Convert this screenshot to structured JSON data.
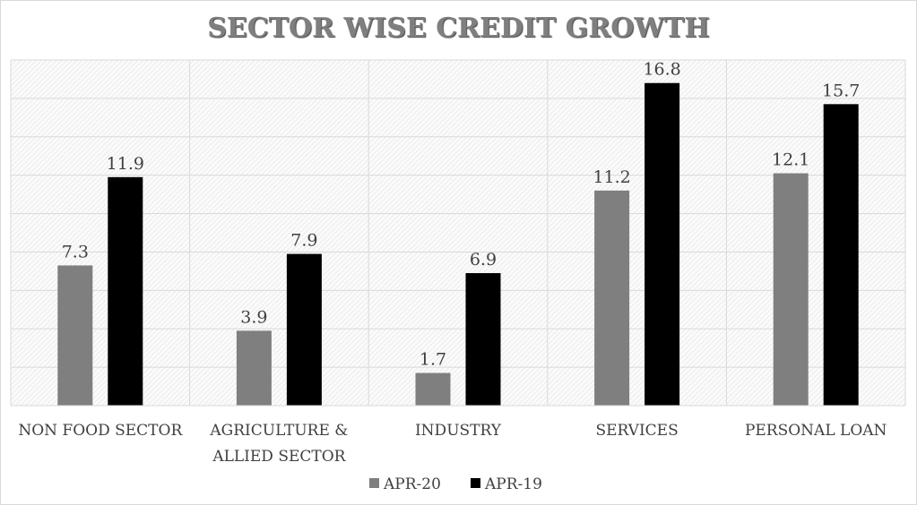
{
  "chart_data": {
    "type": "bar",
    "title": "SECTOR WISE CREDIT GROWTH",
    "categories": [
      [
        "NON FOOD SECTOR"
      ],
      [
        "AGRICULTURE &",
        "ALLIED SECTOR"
      ],
      [
        "INDUSTRY"
      ],
      [
        "SERVICES"
      ],
      [
        "PERSONAL LOAN"
      ]
    ],
    "series": [
      {
        "name": "APR-20",
        "color": "#7f7f7f",
        "values": [
          7.3,
          3.9,
          1.7,
          11.2,
          12.1
        ]
      },
      {
        "name": "APR-19",
        "color": "#000000",
        "values": [
          11.9,
          7.9,
          6.9,
          16.8,
          15.7
        ]
      }
    ],
    "ylim": [
      0,
      18
    ],
    "ystep": 2,
    "grid": true,
    "legend": "bottom",
    "xlabel": "",
    "ylabel": ""
  }
}
